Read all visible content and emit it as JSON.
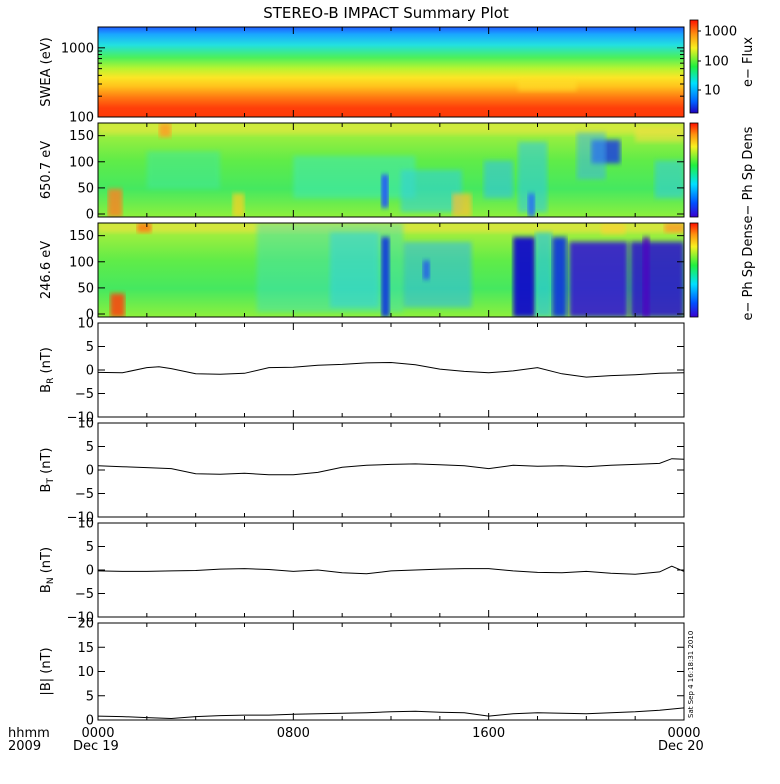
{
  "title": "STEREO-B IMPACT Summary Plot",
  "footer": {
    "time_label": "hhmm",
    "year_label": "2009",
    "x_ticks": [
      "0000",
      "0800",
      "1600",
      "0000"
    ],
    "date_start": "Dec 19",
    "date_end": "Dec 20",
    "timestamp": "Sat Sep  4 16:18:31 2010"
  },
  "chart_data": [
    {
      "id": "swea",
      "type": "heatmap",
      "ylabel": "SWEA (eV)",
      "yscale": "log",
      "ylim": [
        100,
        2000
      ],
      "y_ticks": [
        "100",
        "1000"
      ],
      "colorbar": {
        "label": "e− Flux",
        "ticks": [
          "10",
          "100",
          "1000"
        ],
        "scale": "log"
      },
      "description_values": {
        "low_energy_flux_level": "high",
        "high_energy_flux_level": "low"
      }
    },
    {
      "id": "pad650",
      "type": "heatmap",
      "ylabel": "650.7 eV",
      "ylim": [
        0,
        180
      ],
      "y_ticks": [
        "0",
        "50",
        "100",
        "150"
      ],
      "colorbar": {
        "label": "e− Ph Sp Dens"
      }
    },
    {
      "id": "pad246",
      "type": "heatmap",
      "ylabel": "246.6 eV",
      "ylim": [
        0,
        180
      ],
      "y_ticks": [
        "0",
        "50",
        "100",
        "150"
      ],
      "colorbar": {
        "label": "e− Ph Sp Dens"
      }
    },
    {
      "id": "br",
      "type": "line",
      "ylabel": "B",
      "ylabel_sub": "R",
      "yunit": " (nT)",
      "ylim": [
        -10,
        10
      ],
      "y_ticks": [
        "10",
        "5",
        "0",
        "−5",
        "−10"
      ],
      "x_hours": [
        0,
        1,
        2,
        2.5,
        3,
        4,
        5,
        6,
        7,
        8,
        9,
        10,
        11,
        12,
        13,
        14,
        15,
        16,
        17,
        18,
        19,
        20,
        21,
        22,
        23,
        24
      ],
      "values": [
        -0.5,
        -0.6,
        0.5,
        0.7,
        0.3,
        -0.8,
        -0.9,
        -0.7,
        0.5,
        0.6,
        1.0,
        1.2,
        1.5,
        1.6,
        1.1,
        0.2,
        -0.3,
        -0.6,
        -0.2,
        0.5,
        -0.8,
        -1.5,
        -1.2,
        -1.0,
        -0.7,
        -0.6
      ]
    },
    {
      "id": "bt",
      "type": "line",
      "ylabel": "B",
      "ylabel_sub": "T",
      "yunit": " (nT)",
      "ylim": [
        -10,
        10
      ],
      "y_ticks": [
        "10",
        "5",
        "0",
        "−5",
        "−10"
      ],
      "x_hours": [
        0,
        1,
        2,
        3,
        4,
        5,
        6,
        7,
        8,
        9,
        10,
        11,
        12,
        13,
        14,
        15,
        16,
        17,
        18,
        19,
        20,
        21,
        22,
        23,
        23.5,
        24
      ],
      "values": [
        0.9,
        0.7,
        0.5,
        0.3,
        -0.8,
        -0.9,
        -0.7,
        -1.0,
        -1.0,
        -0.5,
        0.6,
        1.0,
        1.2,
        1.3,
        1.1,
        0.9,
        0.3,
        1.0,
        0.8,
        0.9,
        0.7,
        1.0,
        1.2,
        1.4,
        2.4,
        2.3
      ]
    },
    {
      "id": "bn",
      "type": "line",
      "ylabel": "B",
      "ylabel_sub": "N",
      "yunit": " (nT)",
      "ylim": [
        -10,
        10
      ],
      "y_ticks": [
        "10",
        "5",
        "0",
        "−5",
        "−10"
      ],
      "x_hours": [
        0,
        1,
        2,
        3,
        4,
        5,
        6,
        7,
        8,
        9,
        10,
        11,
        12,
        13,
        14,
        15,
        16,
        17,
        18,
        19,
        20,
        21,
        22,
        23,
        23.5,
        24
      ],
      "values": [
        -0.2,
        -0.3,
        -0.3,
        -0.2,
        -0.1,
        0.2,
        0.3,
        0.1,
        -0.3,
        0.0,
        -0.6,
        -0.8,
        -0.2,
        0.0,
        0.2,
        0.3,
        0.3,
        -0.2,
        -0.5,
        -0.6,
        -0.3,
        -0.7,
        -0.9,
        -0.4,
        0.8,
        -0.3
      ]
    },
    {
      "id": "bmag",
      "type": "line",
      "ylabel": "|B| (nT)",
      "ylim": [
        0,
        20
      ],
      "y_ticks": [
        "20",
        "15",
        "10",
        "5",
        "0"
      ],
      "x_hours": [
        0,
        1,
        2,
        3,
        4,
        5,
        6,
        7,
        8,
        9,
        10,
        11,
        12,
        13,
        14,
        15,
        16,
        17,
        18,
        19,
        20,
        21,
        22,
        23,
        24
      ],
      "values": [
        0.8,
        0.7,
        0.5,
        0.3,
        0.7,
        0.9,
        1.0,
        1.0,
        1.2,
        1.3,
        1.4,
        1.5,
        1.7,
        1.8,
        1.6,
        1.5,
        0.8,
        1.3,
        1.5,
        1.4,
        1.3,
        1.5,
        1.7,
        2.0,
        2.5
      ]
    }
  ]
}
